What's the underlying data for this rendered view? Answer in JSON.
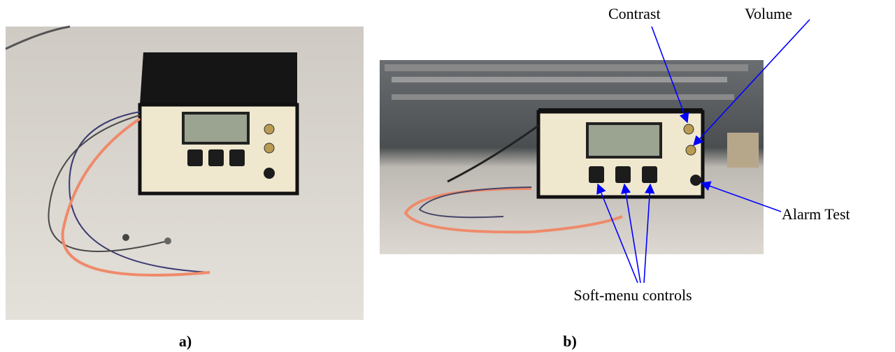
{
  "figure": {
    "panels": [
      {
        "caption": "a)"
      },
      {
        "caption": "b)"
      }
    ],
    "callouts": {
      "contrast": "Contrast",
      "volume": "Volume",
      "alarm_test": "Alarm Test",
      "soft_menu": "Soft-menu controls"
    }
  }
}
